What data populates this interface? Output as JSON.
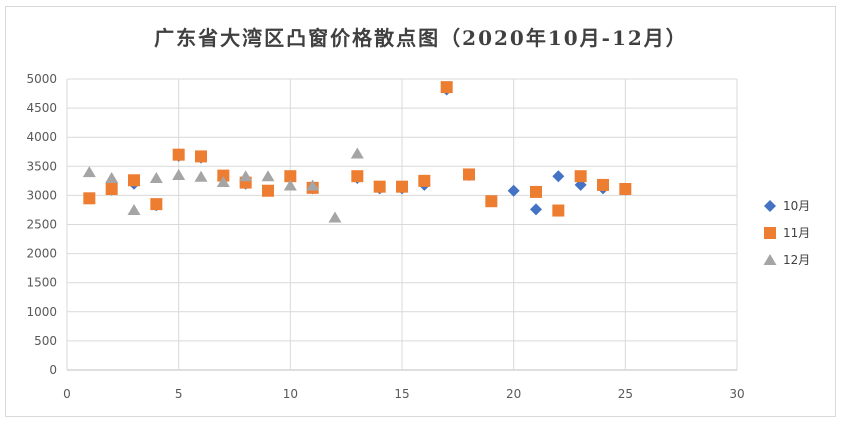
{
  "chart_data": {
    "type": "scatter",
    "title": "广东省大湾区凸窗价格散点图（2020年10月-12月）",
    "xlabel": "",
    "ylabel": "",
    "xlim": [
      0,
      30
    ],
    "ylim": [
      0,
      5000
    ],
    "xticks": [
      0,
      5,
      10,
      15,
      20,
      25,
      30
    ],
    "yticks": [
      0,
      500,
      1000,
      1500,
      2000,
      2500,
      3000,
      3500,
      4000,
      4500,
      5000
    ],
    "grid": true,
    "legend_position": "right",
    "series": [
      {
        "name": "10月",
        "marker": "diamond",
        "color": "#4472c4",
        "x": [
          1,
          2,
          3,
          4,
          5,
          6,
          7,
          8,
          9,
          10,
          11,
          13,
          14,
          15,
          16,
          17,
          18,
          19,
          20,
          21,
          22,
          23,
          24,
          25
        ],
        "y": [
          2950,
          3100,
          3200,
          2830,
          3680,
          3650,
          3330,
          3200,
          3080,
          3300,
          3120,
          3300,
          3120,
          3120,
          3180,
          4820,
          3350,
          2900,
          3080,
          2760,
          3330,
          3180,
          3120,
          3100
        ]
      },
      {
        "name": "11月",
        "marker": "square",
        "color": "#ed7d31",
        "x": [
          1,
          2,
          3,
          4,
          5,
          6,
          7,
          8,
          9,
          10,
          11,
          13,
          14,
          15,
          16,
          17,
          18,
          19,
          21,
          22,
          23,
          24,
          25
        ],
        "y": [
          2950,
          3110,
          3260,
          2850,
          3700,
          3670,
          3340,
          3220,
          3080,
          3330,
          3130,
          3330,
          3150,
          3150,
          3250,
          4860,
          3360,
          2900,
          3060,
          2740,
          3330,
          3180,
          3110
        ]
      },
      {
        "name": "12月",
        "marker": "triangle",
        "color": "#a5a5a5",
        "x": [
          1,
          2,
          3,
          4,
          5,
          6,
          7,
          8,
          9,
          10,
          11,
          12,
          13
        ],
        "y": [
          3400,
          3300,
          2750,
          3300,
          3350,
          3320,
          3230,
          3330,
          3330,
          3170,
          3170,
          2620,
          3720
        ]
      }
    ]
  }
}
